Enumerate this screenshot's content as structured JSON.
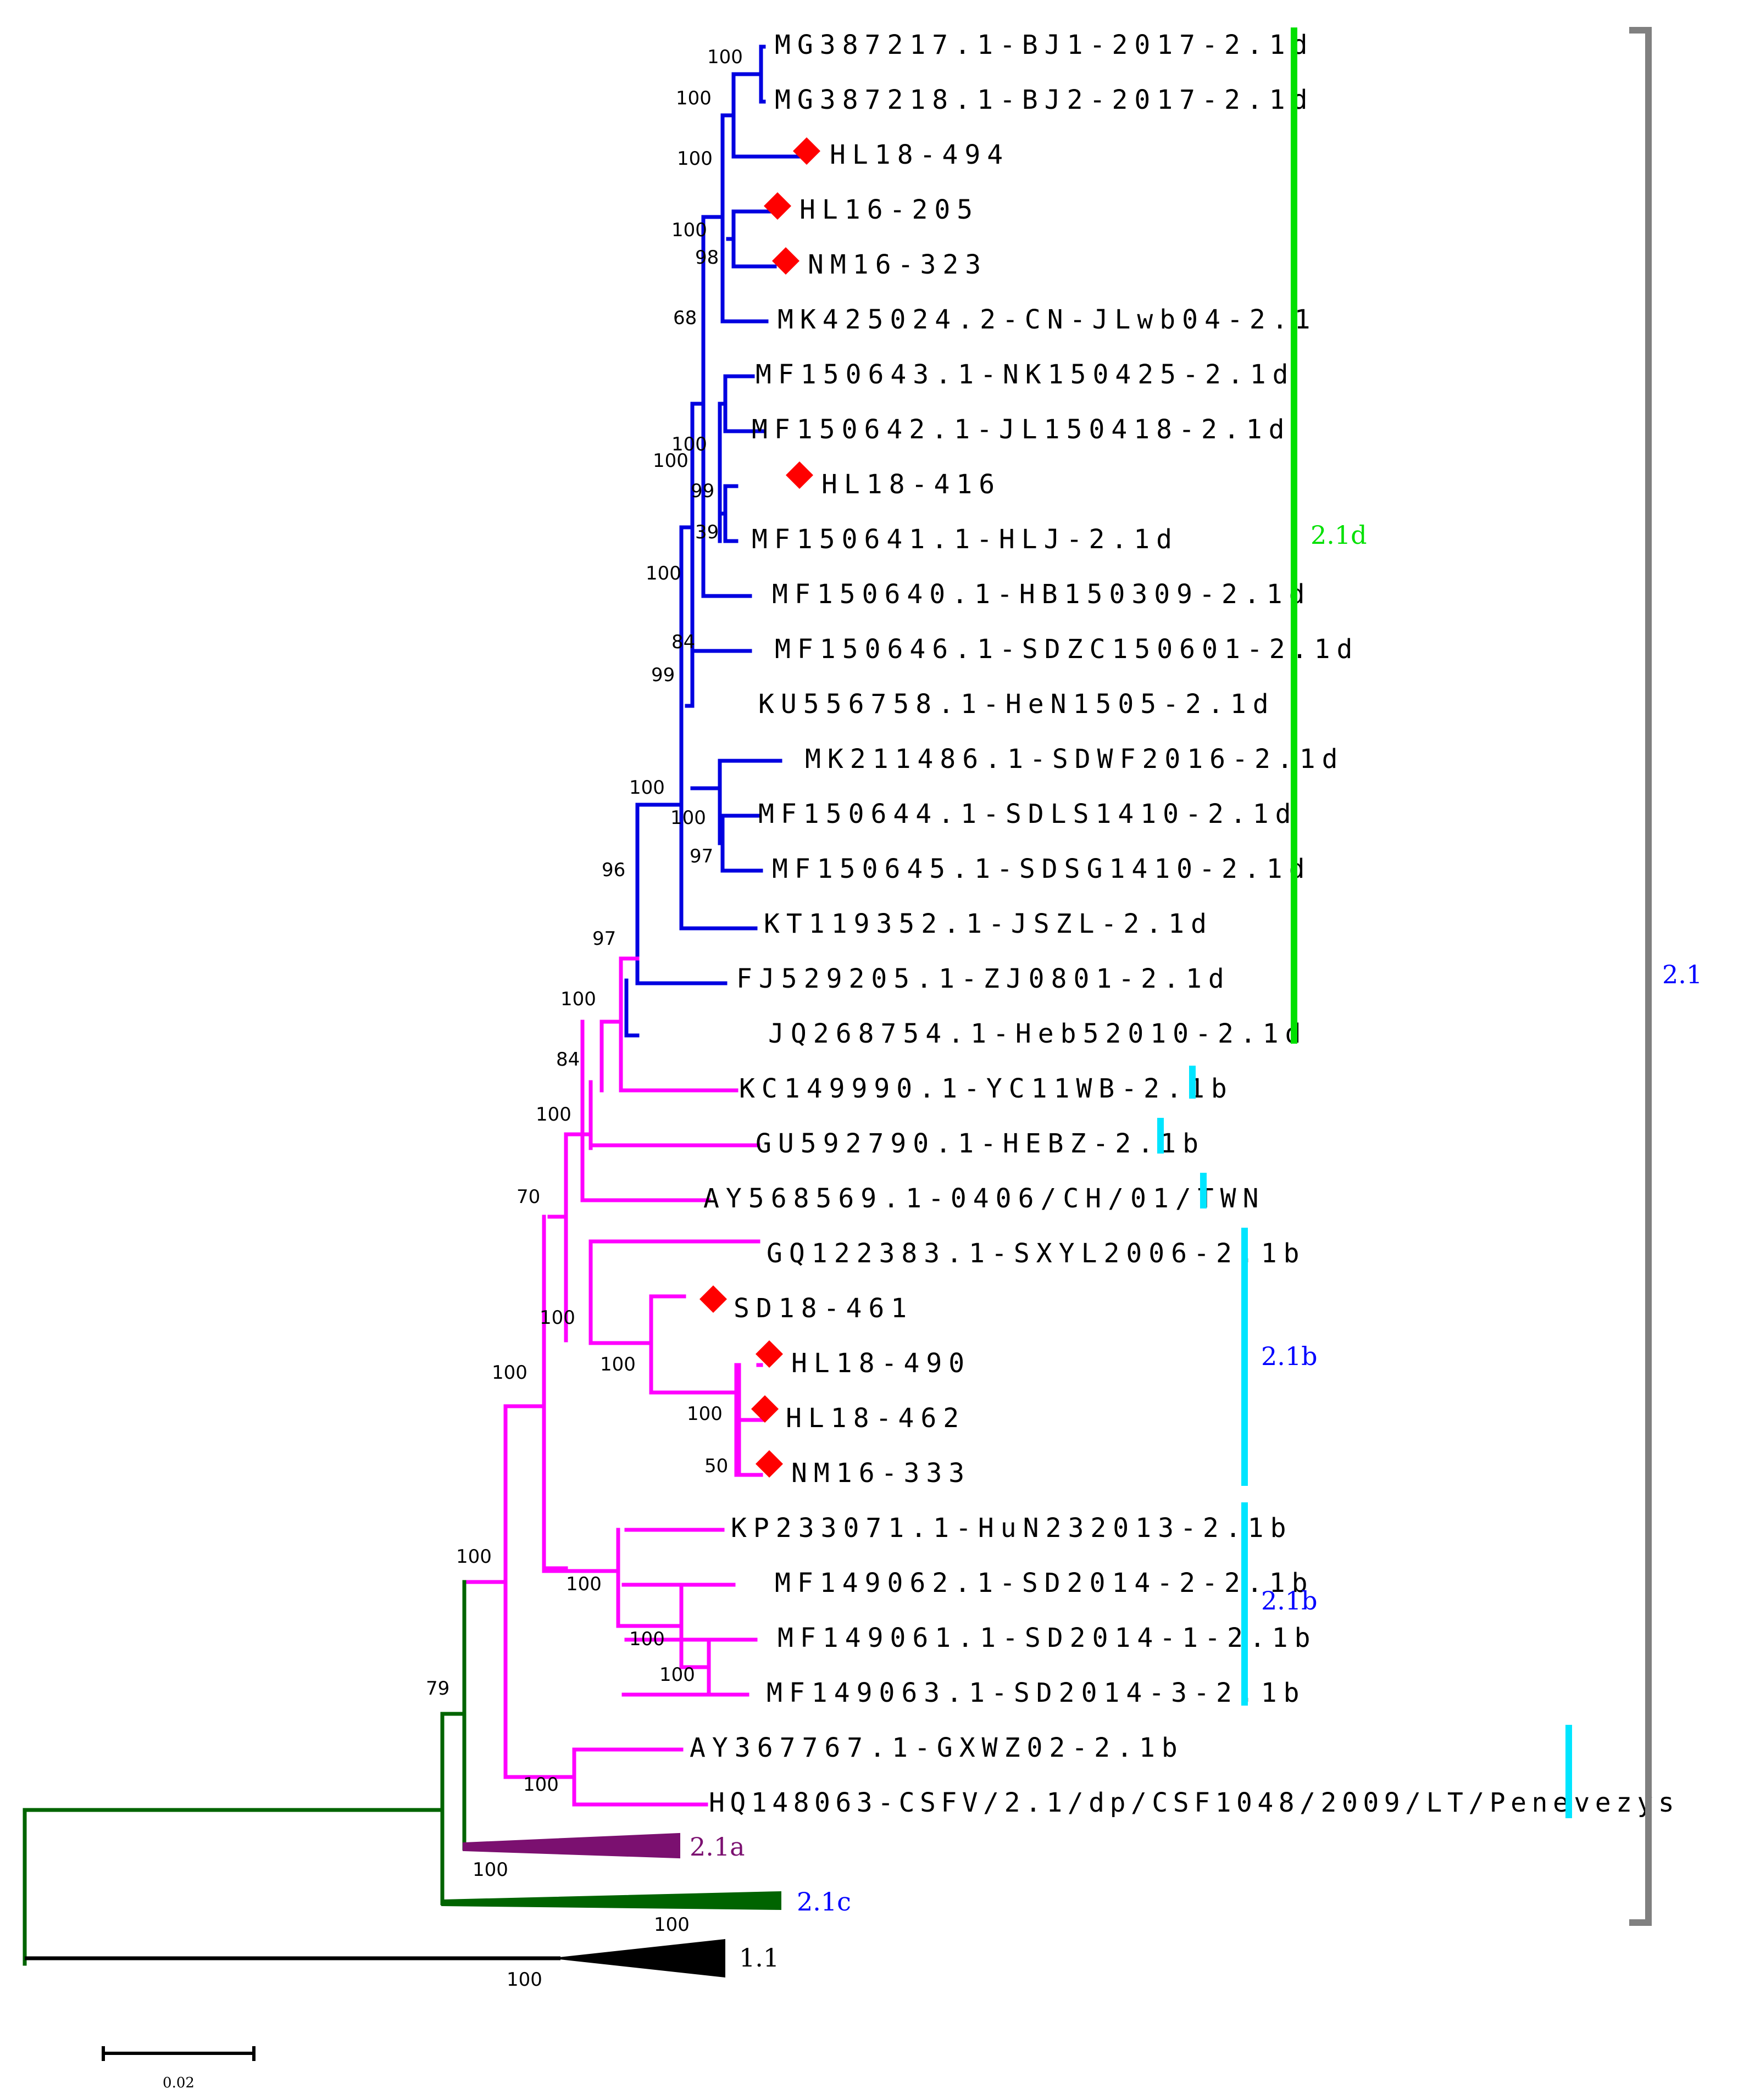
{
  "figure": "Phylogenetic tree",
  "colors": {
    "blue": "#0000e0",
    "magenta": "#ff00ff",
    "green": "#006400",
    "purple": "#7b1070",
    "black": "#000000",
    "marker": "#ff0000",
    "bar_21d": "#00e000",
    "bar_21b": "#00e5ff",
    "bar_21": "#808080",
    "label_blue": "#0000ff",
    "label_green": "#00e000",
    "label_purple": "#7b1070"
  },
  "leaves": [
    {
      "label": "MG387217.1-BJ1-2017-2.1d",
      "marker": false
    },
    {
      "label": "MG387218.1-BJ2-2017-2.1d",
      "marker": false
    },
    {
      "label": "HL18-494",
      "marker": true
    },
    {
      "label": "HL16-205",
      "marker": true
    },
    {
      "label": "NM16-323",
      "marker": true
    },
    {
      "label": "MK425024.2-CN-JLwb04-2.1",
      "marker": false
    },
    {
      "label": "MF150643.1-NK150425-2.1d",
      "marker": false
    },
    {
      "label": "MF150642.1-JL150418-2.1d",
      "marker": false
    },
    {
      "label": "HL18-416",
      "marker": true
    },
    {
      "label": "MF150641.1-HLJ-2.1d",
      "marker": false
    },
    {
      "label": "MF150640.1-HB150309-2.1d",
      "marker": false
    },
    {
      "label": "MF150646.1-SDZC150601-2.1d",
      "marker": false
    },
    {
      "label": "KU556758.1-HeN1505-2.1d",
      "marker": false
    },
    {
      "label": "MK211486.1-SDWF2016-2.1d",
      "marker": false
    },
    {
      "label": "MF150644.1-SDLS1410-2.1d",
      "marker": false
    },
    {
      "label": "MF150645.1-SDSG1410-2.1d",
      "marker": false
    },
    {
      "label": "KT119352.1-JSZL-2.1d",
      "marker": false
    },
    {
      "label": "FJ529205.1-ZJ0801-2.1d",
      "marker": false
    },
    {
      "label": "JQ268754.1-Heb52010-2.1d",
      "marker": false
    },
    {
      "label": "KC149990.1-YC11WB-2.1b",
      "marker": false
    },
    {
      "label": "GU592790.1-HEBZ-2.1b",
      "marker": false
    },
    {
      "label": "AY568569.1-0406/CH/01/TWN",
      "marker": false
    },
    {
      "label": "GQ122383.1-SXYL2006-2.1b",
      "marker": false
    },
    {
      "label": "SD18-461",
      "marker": true
    },
    {
      "label": "HL18-490",
      "marker": true
    },
    {
      "label": "HL18-462",
      "marker": true
    },
    {
      "label": "NM16-333",
      "marker": true
    },
    {
      "label": "KP233071.1-HuN232013-2.1b",
      "marker": false
    },
    {
      "label": "MF149062.1-SD2014-2-2.1b",
      "marker": false
    },
    {
      "label": "MF149061.1-SD2014-1-2.1b",
      "marker": false
    },
    {
      "label": "MF149063.1-SD2014-3-2.1b",
      "marker": false
    },
    {
      "label": "AY367767.1-GXWZ02-2.1b",
      "marker": false
    },
    {
      "label": "HQ148063-CSFV/2.1/dp/CSF1048/2009/LT/Penevezys",
      "marker": false
    }
  ],
  "collapsed_clades": [
    "2.1a",
    "2.1c",
    "1.1"
  ],
  "bootstrap_values": [
    "100",
    "100",
    "100",
    "100",
    "98",
    "68",
    "100",
    "100",
    "99",
    "39",
    "100",
    "84",
    "99",
    "100",
    "100",
    "97",
    "96",
    "97",
    "100",
    "84",
    "100",
    "70",
    "100",
    "100",
    "100",
    "50",
    "100",
    "100",
    "100",
    "100",
    "100",
    "100",
    "79",
    "100",
    "100",
    "100"
  ],
  "subtype_labels": {
    "d": "2.1d",
    "b1": "2.1b",
    "b2": "2.1b",
    "genotype": "2.1"
  },
  "scale_bar": {
    "value": "0.02"
  }
}
